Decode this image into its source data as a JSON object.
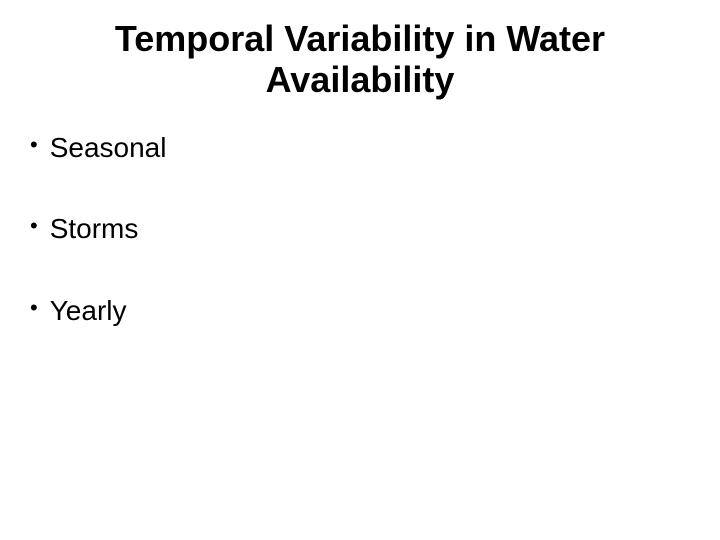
{
  "slide": {
    "title_line1": "Temporal Variability in Water",
    "title_line2": "Availability",
    "title_fontsize": 36,
    "title_color": "#000000",
    "title_weight": "bold",
    "bullets": [
      {
        "marker": "•",
        "text": "Seasonal"
      },
      {
        "marker": "•",
        "text": "Storms"
      },
      {
        "marker": "•",
        "text": "Yearly"
      }
    ],
    "bullet_fontsize": 28,
    "bullet_color": "#000000",
    "background_color": "#ffffff",
    "font_family": "Arial"
  }
}
